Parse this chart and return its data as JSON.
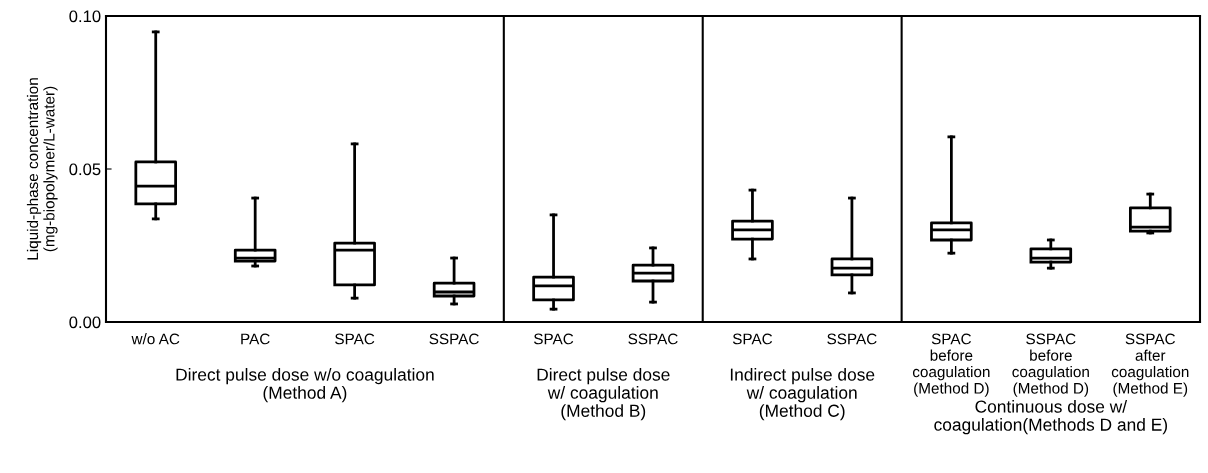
{
  "chart_data": {
    "type": "box",
    "ylabel": "Liquid-phase concentration\n(mg-biopolymer/L-water)",
    "categories": [
      "w/o AC",
      "PAC",
      "SPAC",
      "SSPAC",
      "SPAC",
      "SSPAC",
      "SPAC",
      "SSPAC",
      "SPAC\nbefore\ncoagulation\n(Method D)",
      "SSPAC\nbefore\ncoagulation\n(Method D)",
      "SSPAC\nafter\ncoagulation\n(Method E)"
    ],
    "boxes": [
      {
        "low": 0.0337,
        "q1": 0.0386,
        "median": 0.0444,
        "q3": 0.0523,
        "high": 0.0948
      },
      {
        "low": 0.0183,
        "q1": 0.0199,
        "median": 0.0209,
        "q3": 0.0235,
        "high": 0.0405
      },
      {
        "low": 0.0078,
        "q1": 0.0121,
        "median": 0.0235,
        "q3": 0.0258,
        "high": 0.0582
      },
      {
        "low": 0.0059,
        "q1": 0.0085,
        "median": 0.0098,
        "q3": 0.0127,
        "high": 0.0209
      },
      {
        "low": 0.0042,
        "q1": 0.0072,
        "median": 0.0118,
        "q3": 0.0147,
        "high": 0.035
      },
      {
        "low": 0.0065,
        "q1": 0.0134,
        "median": 0.016,
        "q3": 0.0186,
        "high": 0.0242
      },
      {
        "low": 0.0206,
        "q1": 0.0271,
        "median": 0.0301,
        "q3": 0.033,
        "high": 0.0431
      },
      {
        "low": 0.0095,
        "q1": 0.0154,
        "median": 0.0176,
        "q3": 0.0206,
        "high": 0.0405
      },
      {
        "low": 0.0225,
        "q1": 0.0268,
        "median": 0.0301,
        "q3": 0.0324,
        "high": 0.0605
      },
      {
        "low": 0.0176,
        "q1": 0.0196,
        "median": 0.0209,
        "q3": 0.0239,
        "high": 0.0268
      },
      {
        "low": 0.0291,
        "q1": 0.0297,
        "median": 0.031,
        "q3": 0.0373,
        "high": 0.0418
      }
    ],
    "color": "#000000",
    "ylim": [
      0,
      0.1
    ],
    "yticks": [
      {
        "value": 0,
        "label": "0.00"
      },
      {
        "value": 0.05,
        "label": "0.05"
      },
      {
        "value": 0.1,
        "label": "0.10"
      }
    ],
    "annotations": [
      "Direct pulse dose w/o coagulation\n(Method A)",
      "Direct pulse dose\nw/ coagulation\n(Method B)",
      "Indirect pulse dose\nw/ coagulation\n(Method C)",
      "Continuous dose w/\ncoagulation(Methods D and E)"
    ],
    "grid": false,
    "legend": false
  }
}
